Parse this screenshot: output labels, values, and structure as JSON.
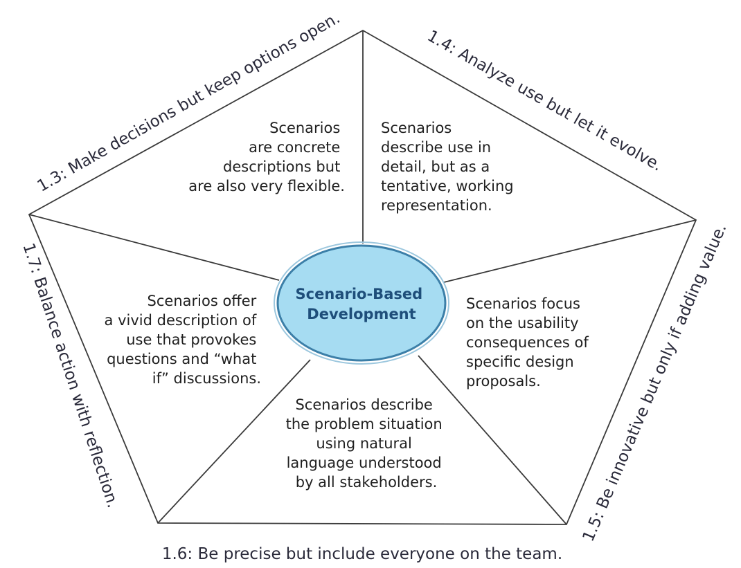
{
  "center": {
    "lines": [
      "Scenario-Based",
      "Development"
    ],
    "fill_color": "#a6dcf2",
    "stroke_color": "#3c7fa8",
    "text_color": "#1e4e7a"
  },
  "edges": {
    "top_left": "1.3: Make decisions but keep options open.",
    "top_right": "1.4: Analyze use but let it evolve.",
    "right": "1.5: Be innovative but only if adding value.",
    "bottom": "1.6: Be precise but include everyone on the team.",
    "left": "1.7: Balance action with reflection."
  },
  "regions": {
    "top_left": [
      "Scenarios",
      "are concrete",
      "descriptions but",
      "are also very flexible."
    ],
    "top_right": [
      "Scenarios",
      "describe use in",
      "detail, but as a",
      "tentative, working",
      "representation."
    ],
    "right": [
      "Scenarios focus",
      "on the usability",
      "consequences of",
      "specific design",
      "proposals."
    ],
    "bottom": [
      "Scenarios describe",
      "the problem situation",
      "using natural",
      "language understood",
      "by all stakeholders."
    ],
    "left": [
      "Scenarios offer",
      "a vivid description of",
      "use that provokes",
      "questions and “what",
      "if” discussions."
    ]
  }
}
